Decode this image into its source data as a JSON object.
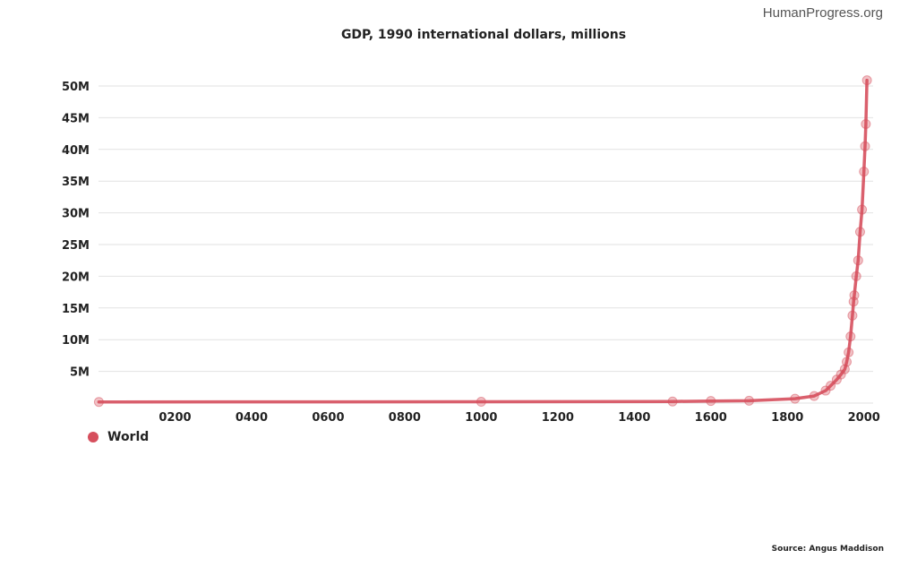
{
  "brand": "HumanProgress.org",
  "source": "Source: Angus Maddison",
  "chart_data": {
    "type": "line",
    "title": "GDP, 1990 international dollars, millions",
    "xlabel": "",
    "ylabel": "",
    "xlim": [
      0,
      2010
    ],
    "ylim": [
      0,
      50000000
    ],
    "x_ticks": [
      200,
      400,
      600,
      800,
      1000,
      1200,
      1400,
      1600,
      1800,
      2000
    ],
    "x_tick_labels": [
      "0200",
      "0400",
      "0600",
      "0800",
      "1000",
      "1200",
      "1400",
      "1600",
      "1800",
      "2000"
    ],
    "y_ticks": [
      5000000,
      10000000,
      15000000,
      20000000,
      25000000,
      30000000,
      35000000,
      40000000,
      45000000,
      50000000
    ],
    "y_tick_labels": [
      "5M",
      "10M",
      "15M",
      "20M",
      "25M",
      "30M",
      "35M",
      "40M",
      "45M",
      "50M"
    ],
    "grid": true,
    "legend_position": "bottom-left",
    "color": "#d64f5d",
    "series": [
      {
        "name": "World",
        "x": [
          1,
          1000,
          1500,
          1600,
          1700,
          1820,
          1870,
          1900,
          1913,
          1929,
          1940,
          1950,
          1955,
          1960,
          1965,
          1970,
          1973,
          1975,
          1980,
          1985,
          1990,
          1995,
          2000,
          2003,
          2005,
          2008
        ],
        "y": [
          182000,
          211000,
          248000,
          331000,
          371000,
          694000,
          1110000,
          1970000,
          2730000,
          3700000,
          4500000,
          5340000,
          6500000,
          8000000,
          10500000,
          13800000,
          16000000,
          17000000,
          20000000,
          22500000,
          27000000,
          30500000,
          36500000,
          40500000,
          44000000,
          50900000
        ]
      }
    ]
  },
  "legend": {
    "world_label": "World"
  }
}
